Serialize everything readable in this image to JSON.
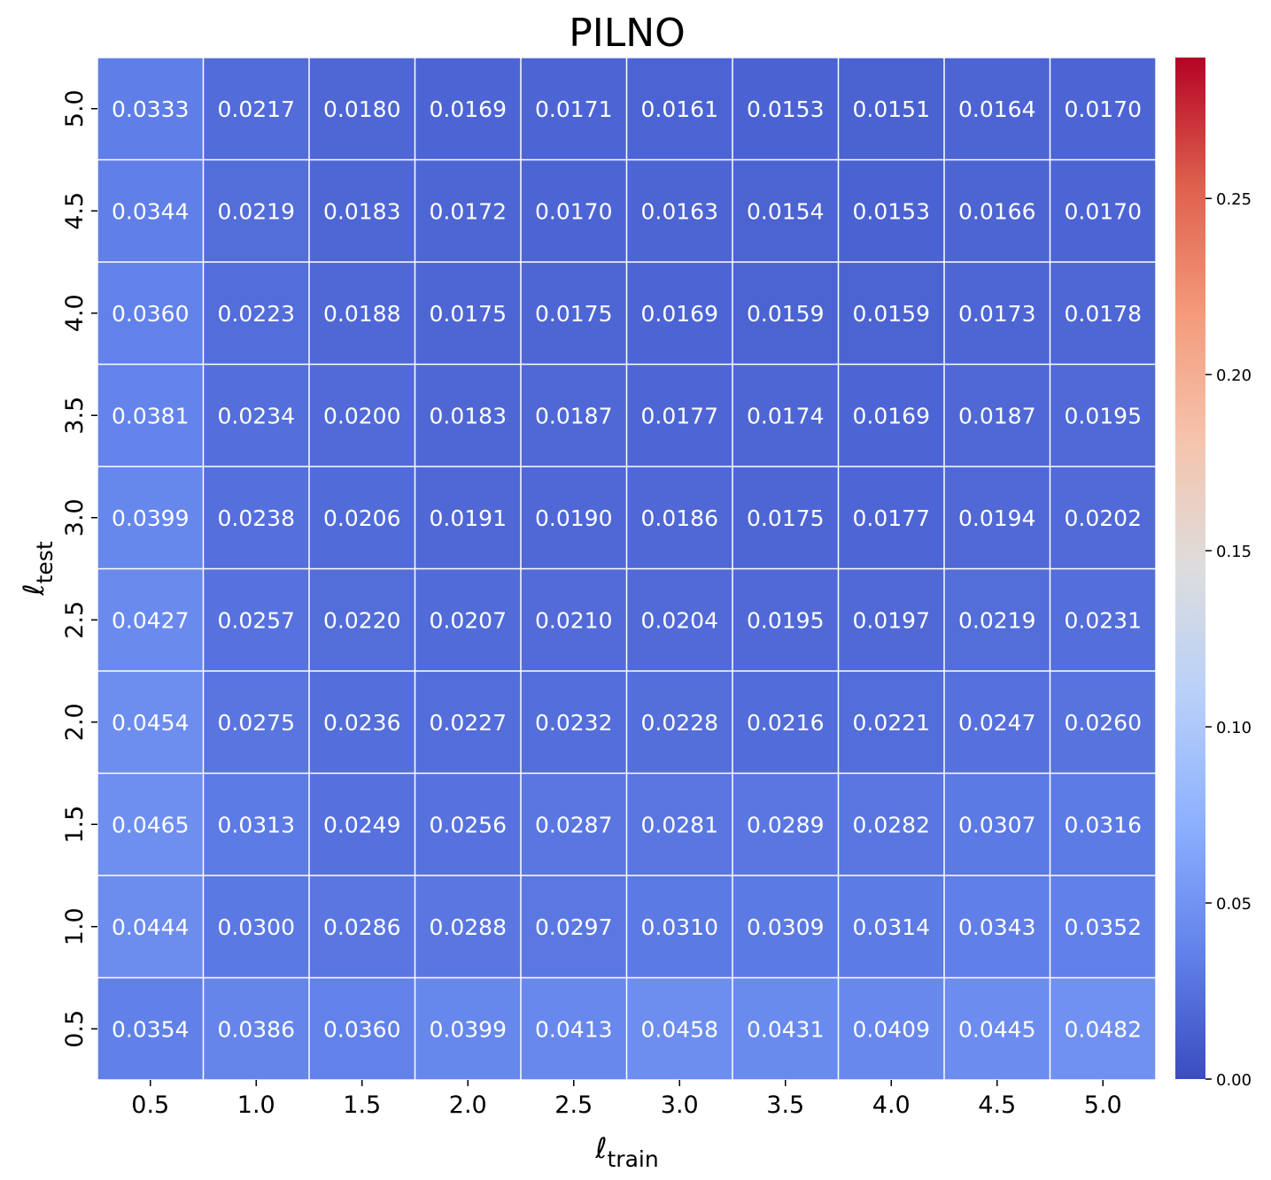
{
  "chart_data": {
    "type": "heatmap",
    "title": "PILNO",
    "xlabel": {
      "symbol": "ℓ",
      "subscript": "train"
    },
    "ylabel": {
      "symbol": "ℓ",
      "subscript": "test"
    },
    "x": [
      "0.5",
      "1.0",
      "1.5",
      "2.0",
      "2.5",
      "3.0",
      "3.5",
      "4.0",
      "4.5",
      "5.0"
    ],
    "y": [
      "5.0",
      "4.5",
      "4.0",
      "3.5",
      "3.0",
      "2.5",
      "2.0",
      "1.5",
      "1.0",
      "0.5"
    ],
    "values": [
      [
        "0.0333",
        "0.0217",
        "0.0180",
        "0.0169",
        "0.0171",
        "0.0161",
        "0.0153",
        "0.0151",
        "0.0164",
        "0.0170"
      ],
      [
        "0.0344",
        "0.0219",
        "0.0183",
        "0.0172",
        "0.0170",
        "0.0163",
        "0.0154",
        "0.0153",
        "0.0166",
        "0.0170"
      ],
      [
        "0.0360",
        "0.0223",
        "0.0188",
        "0.0175",
        "0.0175",
        "0.0169",
        "0.0159",
        "0.0159",
        "0.0173",
        "0.0178"
      ],
      [
        "0.0381",
        "0.0234",
        "0.0200",
        "0.0183",
        "0.0187",
        "0.0177",
        "0.0174",
        "0.0169",
        "0.0187",
        "0.0195"
      ],
      [
        "0.0399",
        "0.0238",
        "0.0206",
        "0.0191",
        "0.0190",
        "0.0186",
        "0.0175",
        "0.0177",
        "0.0194",
        "0.0202"
      ],
      [
        "0.0427",
        "0.0257",
        "0.0220",
        "0.0207",
        "0.0210",
        "0.0204",
        "0.0195",
        "0.0197",
        "0.0219",
        "0.0231"
      ],
      [
        "0.0454",
        "0.0275",
        "0.0236",
        "0.0227",
        "0.0232",
        "0.0228",
        "0.0216",
        "0.0221",
        "0.0247",
        "0.0260"
      ],
      [
        "0.0465",
        "0.0313",
        "0.0249",
        "0.0256",
        "0.0287",
        "0.0281",
        "0.0289",
        "0.0282",
        "0.0307",
        "0.0316"
      ],
      [
        "0.0444",
        "0.0300",
        "0.0286",
        "0.0288",
        "0.0297",
        "0.0310",
        "0.0309",
        "0.0314",
        "0.0343",
        "0.0352"
      ],
      [
        "0.0354",
        "0.0386",
        "0.0360",
        "0.0399",
        "0.0413",
        "0.0458",
        "0.0431",
        "0.0409",
        "0.0445",
        "0.0482"
      ]
    ],
    "colorbar": {
      "colormap": "coolwarm",
      "range": [
        0,
        0.29
      ],
      "ticks": [
        0,
        0.05,
        0.1,
        0.15,
        0.2,
        0.25
      ],
      "tick_labels": [
        "0.00",
        "0.05",
        "0.10",
        "0.15",
        "0.20",
        "0.25"
      ]
    },
    "grid_line_color": "#ffffff",
    "annotation_color": "#ffffff"
  }
}
